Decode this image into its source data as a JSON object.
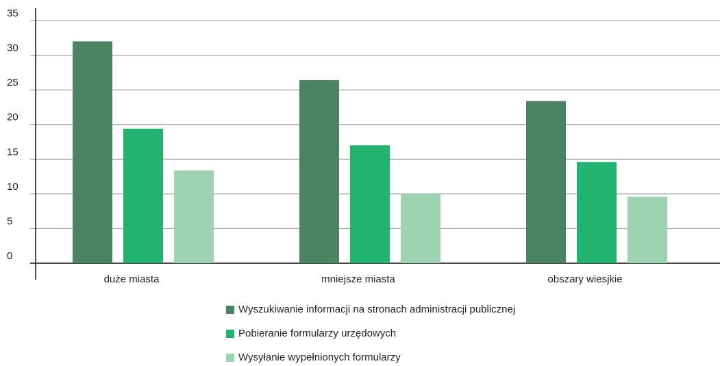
{
  "chart_data": {
    "type": "bar",
    "categories": [
      "duże miasta",
      "mniejsze miasta",
      "obszary wiesjkie"
    ],
    "series": [
      {
        "name": "Wyszukiwanie informacji na stronach administracji publicznej",
        "color": "#4a8460",
        "values": [
          32,
          26.4,
          23.4
        ]
      },
      {
        "name": "Pobieranie formularzy urzędowych",
        "color": "#22b46e",
        "values": [
          19.4,
          17,
          14.6
        ]
      },
      {
        "name": "Wysyłanie wypełnionych formularzy",
        "color": "#9dd3b0",
        "values": [
          13.4,
          10,
          9.6
        ]
      }
    ],
    "ylim": [
      0,
      35
    ],
    "yticks": [
      0,
      5,
      10,
      15,
      20,
      25,
      30,
      35
    ],
    "grid": true,
    "legend": "bottom"
  }
}
